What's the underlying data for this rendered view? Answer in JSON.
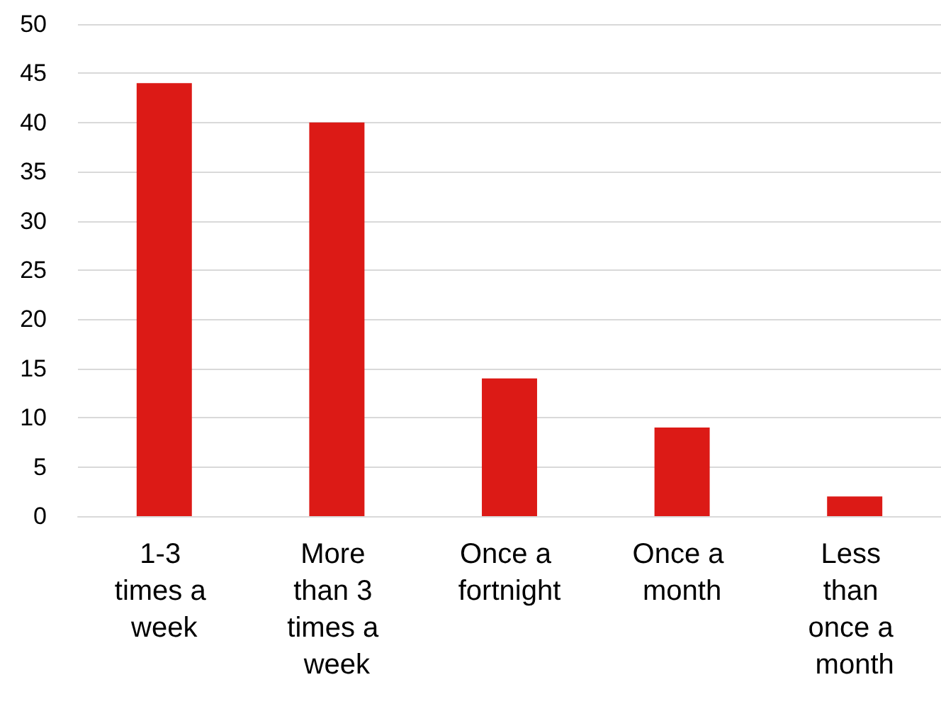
{
  "chart_data": {
    "type": "bar",
    "categories": [
      "1-3 times a week",
      "More than 3 times a week",
      "Once a fortnight",
      "Once a month",
      "Less than once a month"
    ],
    "values": [
      44,
      40,
      14,
      9,
      2
    ],
    "color": "#dc1a16",
    "ylim": [
      0,
      50
    ],
    "yticks": [
      0,
      5,
      10,
      15,
      20,
      25,
      30,
      35,
      40,
      45,
      50
    ],
    "grid": "y"
  }
}
